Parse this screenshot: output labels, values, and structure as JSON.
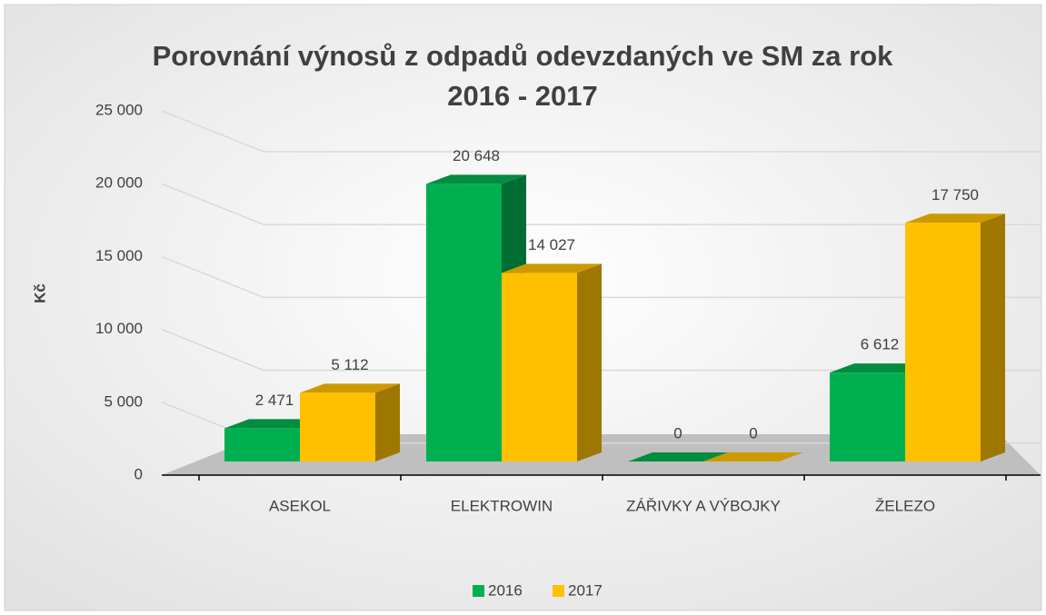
{
  "chart_data": {
    "type": "bar3d",
    "title": "Porovnání výnosů z odpadů odevzdaných ve SM za rok 2016 - 2017",
    "ylabel": "Kč",
    "categories": [
      "ASEKOL",
      "ELEKTROWIN",
      "ZÁŘIVKY A VÝBOJKY",
      "ŽELEZO"
    ],
    "series": [
      {
        "name": "2016",
        "color": "#00b050",
        "values": [
          2471,
          20648,
          0,
          6612
        ],
        "value_labels": [
          "2 471",
          "20 648",
          "0",
          "6 612"
        ]
      },
      {
        "name": "2017",
        "color": "#ffc000",
        "values": [
          5112,
          14027,
          0,
          17750
        ],
        "value_labels": [
          "5 112",
          "14 027",
          "0",
          "17 750"
        ]
      }
    ],
    "ylim": [
      0,
      25000
    ],
    "yticks": [
      0,
      {
        "value": 5000,
        "label": "5 000"
      },
      {
        "value": 10000,
        "label": "10 000"
      },
      {
        "value": 15000,
        "label": "15 000"
      },
      {
        "value": 20000,
        "label": "20 000"
      },
      {
        "value": 25000,
        "label": "25 000"
      }
    ],
    "grid": true,
    "legend": "bottom"
  }
}
